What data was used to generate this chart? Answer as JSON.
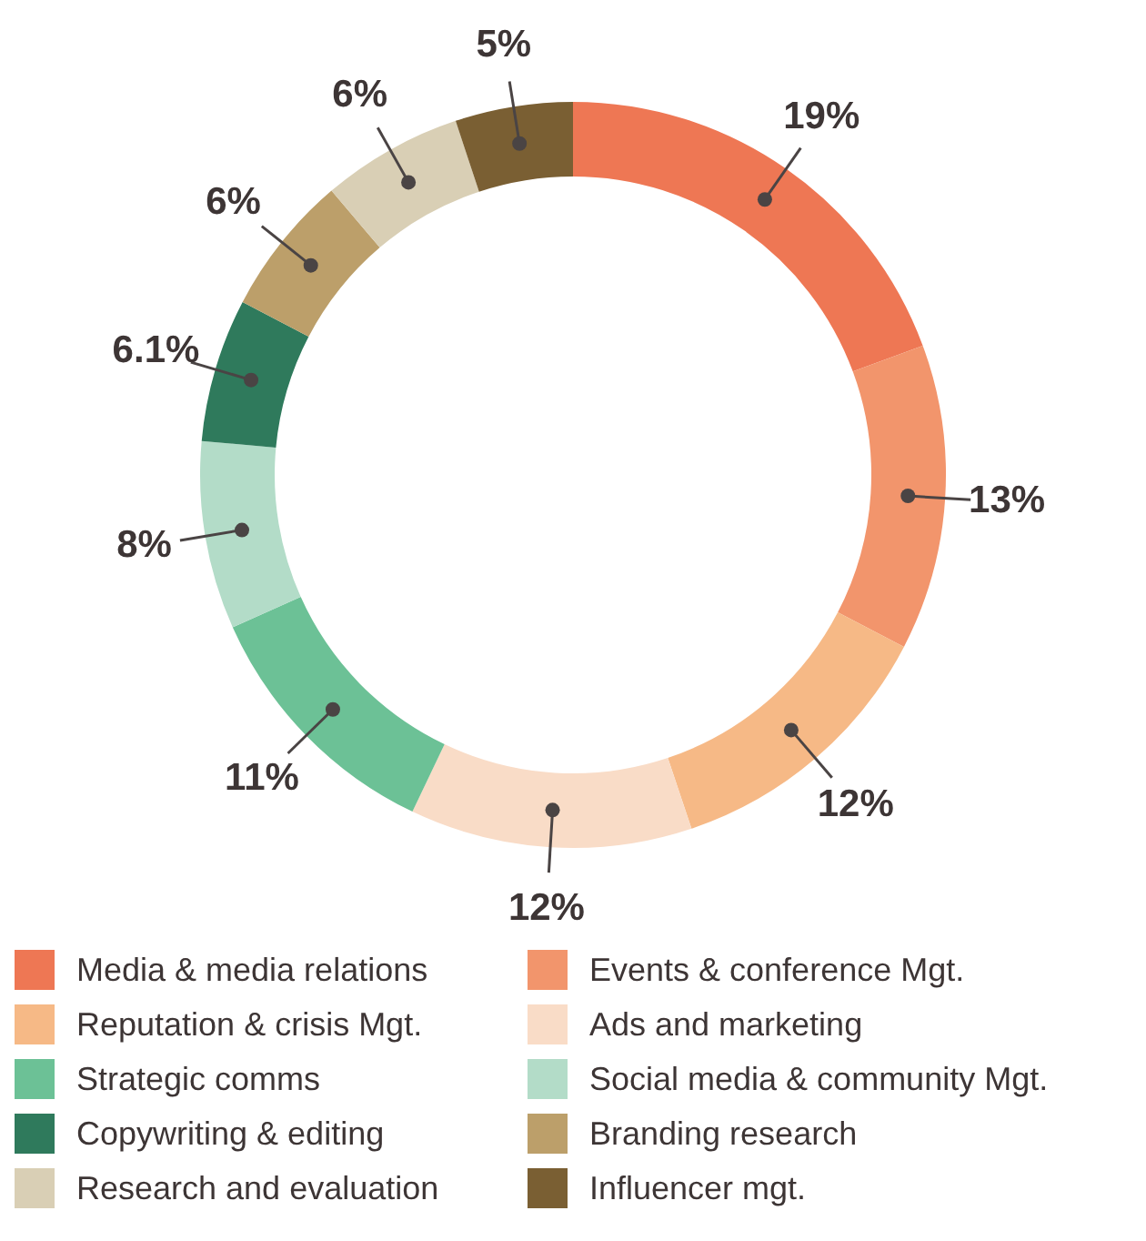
{
  "chart_data": {
    "type": "donut",
    "categories": [
      "Media & media relations",
      "Events & conference Mgt.",
      "Reputation & crisis Mgt.",
      "Ads and marketing",
      "Strategic comms",
      "Social media & community Mgt.",
      "Copywriting & editing",
      "Branding research",
      "Research and evaluation",
      "Influencer mgt."
    ],
    "values": [
      19,
      13,
      12,
      12,
      11,
      8,
      6.1,
      6,
      6,
      5
    ],
    "value_labels": [
      "19%",
      "13%",
      "12%",
      "12%",
      "11%",
      "8%",
      "6.1%",
      "6%",
      "6%",
      "5%"
    ],
    "colors": [
      "#ee7754",
      "#f2956c",
      "#f6b986",
      "#f9dcc7",
      "#6cc196",
      "#b3dcc8",
      "#2f7a5c",
      "#bc9f6a",
      "#d9cfb5",
      "#7a5f33"
    ],
    "legend": "bottom"
  }
}
